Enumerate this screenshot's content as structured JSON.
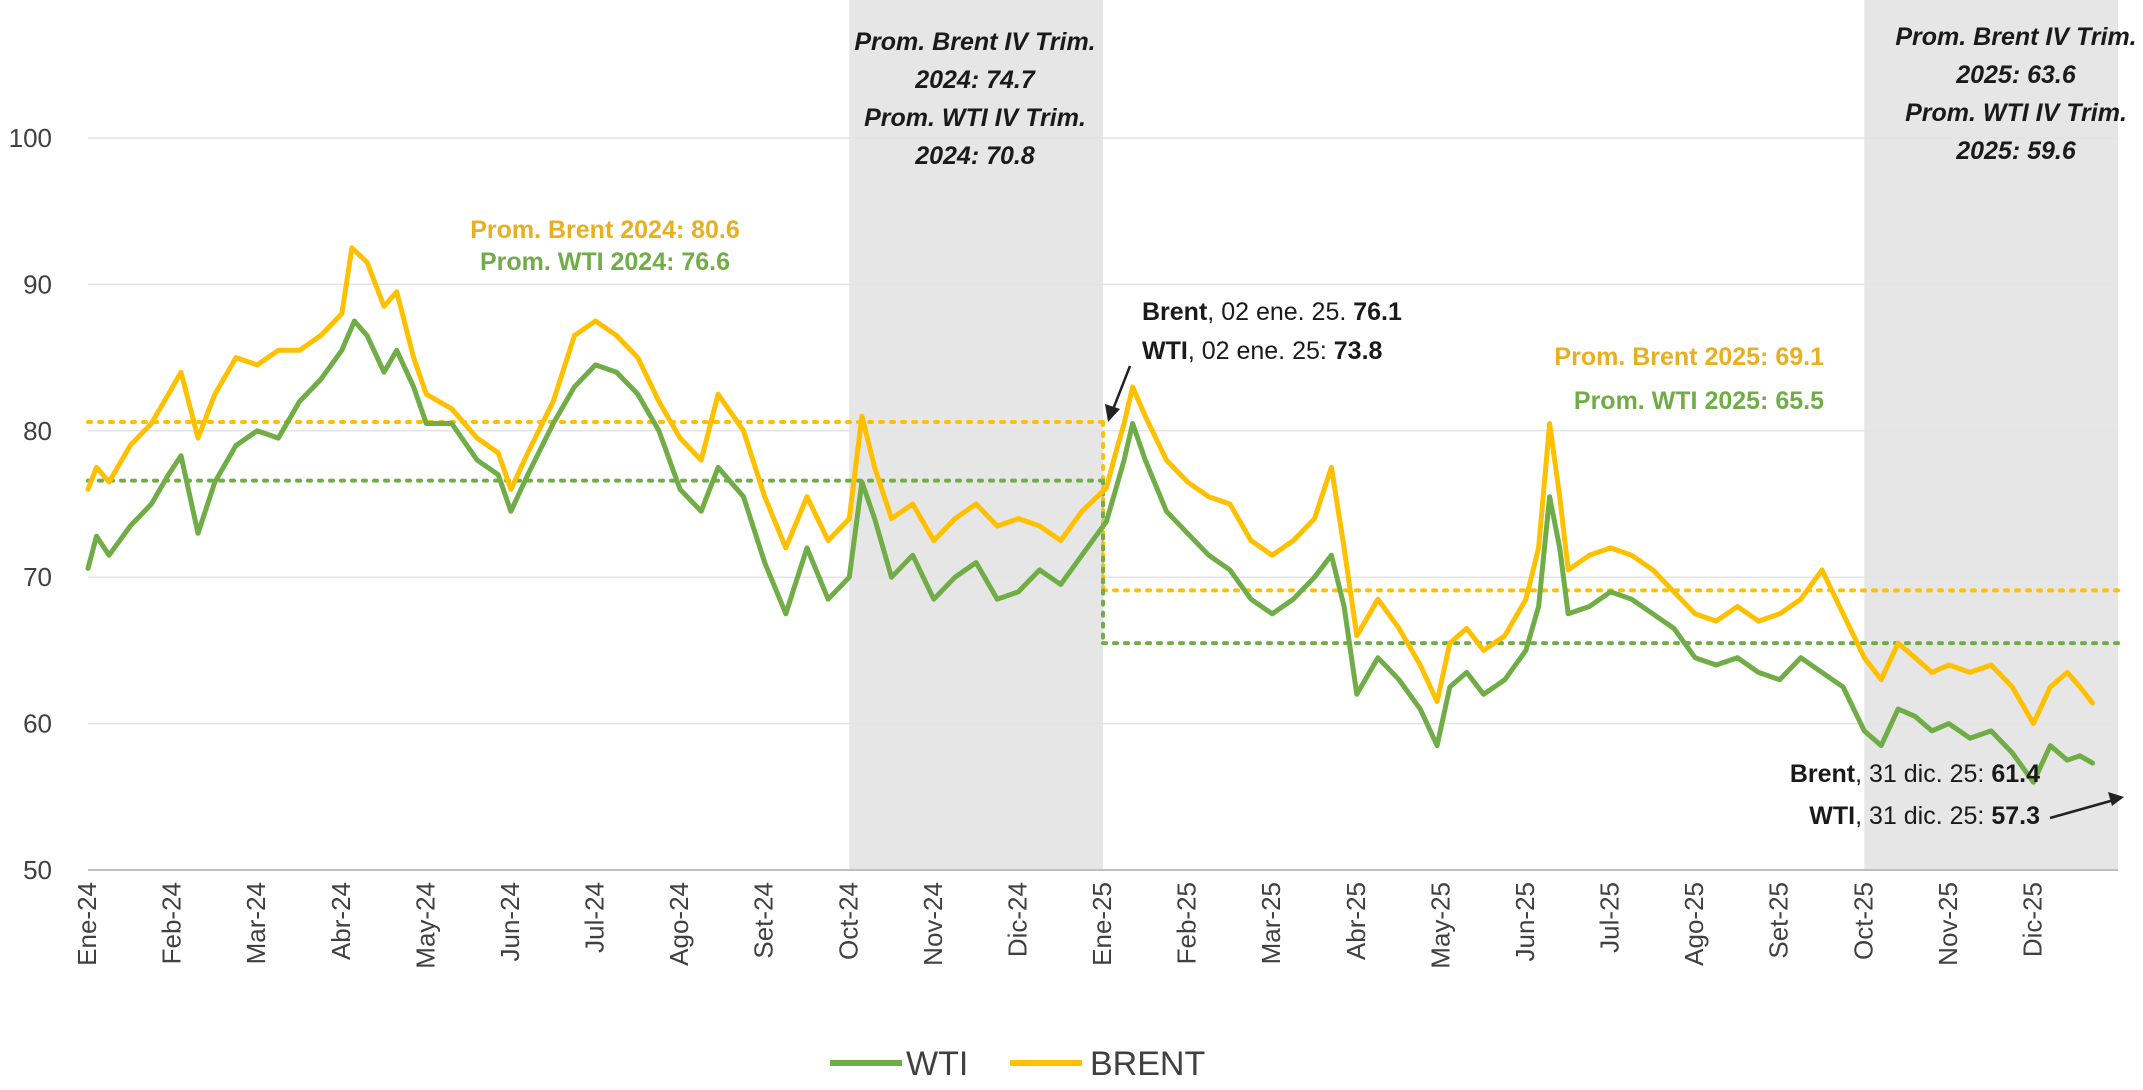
{
  "chart_data": {
    "type": "line",
    "ylim": [
      50,
      100
    ],
    "yticks": [
      50,
      60,
      70,
      80,
      90,
      100
    ],
    "grid": true,
    "legend_position": "bottom-center",
    "months": [
      "Ene-24",
      "Feb-24",
      "Mar-24",
      "Abr-24",
      "May-24",
      "Jun-24",
      "Jul-24",
      "Ago-24",
      "Set-24",
      "Oct-24",
      "Nov-24",
      "Dic-24",
      "Ene-25",
      "Feb-25",
      "Mar-25",
      "Abr-25",
      "May-25",
      "Jun-25",
      "Jul-25",
      "Ago-25",
      "Set-25",
      "Oct-25",
      "Nov-25",
      "Dic-25"
    ],
    "shaded_periods": [
      {
        "name": "IV Trim 2024",
        "from_month": 9,
        "to_month": 12
      },
      {
        "name": "IV Trim 2025",
        "from_month": 21,
        "to_month": 24
      }
    ],
    "colors": {
      "wti": "#70ad47",
      "brent": "#ffc000",
      "wti_text": "#70ad47",
      "brent_text": "#e8b020",
      "shade": "#e6e6e6"
    },
    "series": [
      {
        "name": "WTI",
        "key": "wti",
        "points": [
          [
            0,
            70.6
          ],
          [
            0.1,
            72.8
          ],
          [
            0.25,
            71.5
          ],
          [
            0.5,
            73.5
          ],
          [
            0.75,
            75.0
          ],
          [
            0.95,
            77.0
          ],
          [
            1.1,
            78.3
          ],
          [
            1.3,
            73.0
          ],
          [
            1.5,
            76.5
          ],
          [
            1.75,
            79.0
          ],
          [
            2.0,
            80.0
          ],
          [
            2.25,
            79.5
          ],
          [
            2.5,
            82.0
          ],
          [
            2.75,
            83.5
          ],
          [
            3.0,
            85.5
          ],
          [
            3.15,
            87.5
          ],
          [
            3.3,
            86.5
          ],
          [
            3.5,
            84.0
          ],
          [
            3.65,
            85.5
          ],
          [
            3.85,
            83.0
          ],
          [
            4.0,
            80.5
          ],
          [
            4.3,
            80.5
          ],
          [
            4.6,
            78.0
          ],
          [
            4.85,
            77.0
          ],
          [
            5.0,
            74.5
          ],
          [
            5.2,
            77.0
          ],
          [
            5.5,
            80.5
          ],
          [
            5.75,
            83.0
          ],
          [
            6.0,
            84.5
          ],
          [
            6.25,
            84.0
          ],
          [
            6.5,
            82.5
          ],
          [
            6.75,
            80.0
          ],
          [
            7.0,
            76.0
          ],
          [
            7.25,
            74.5
          ],
          [
            7.45,
            77.5
          ],
          [
            7.75,
            75.5
          ],
          [
            8.0,
            71.0
          ],
          [
            8.25,
            67.5
          ],
          [
            8.5,
            72.0
          ],
          [
            8.75,
            68.5
          ],
          [
            9.0,
            70.0
          ],
          [
            9.15,
            76.5
          ],
          [
            9.3,
            74.0
          ],
          [
            9.5,
            70.0
          ],
          [
            9.75,
            71.5
          ],
          [
            10.0,
            68.5
          ],
          [
            10.25,
            70.0
          ],
          [
            10.5,
            71.0
          ],
          [
            10.75,
            68.5
          ],
          [
            11.0,
            69.0
          ],
          [
            11.25,
            70.5
          ],
          [
            11.5,
            69.5
          ],
          [
            11.75,
            71.5
          ],
          [
            12.04,
            73.8
          ],
          [
            12.15,
            76.0
          ],
          [
            12.25,
            78.0
          ],
          [
            12.35,
            80.5
          ],
          [
            12.5,
            78.0
          ],
          [
            12.75,
            74.5
          ],
          [
            13.0,
            73.0
          ],
          [
            13.25,
            71.5
          ],
          [
            13.5,
            70.5
          ],
          [
            13.75,
            68.5
          ],
          [
            14.0,
            67.5
          ],
          [
            14.25,
            68.5
          ],
          [
            14.5,
            70.0
          ],
          [
            14.7,
            71.5
          ],
          [
            14.85,
            68.0
          ],
          [
            15.0,
            62.0
          ],
          [
            15.25,
            64.5
          ],
          [
            15.5,
            63.0
          ],
          [
            15.75,
            61.0
          ],
          [
            15.95,
            58.5
          ],
          [
            16.1,
            62.5
          ],
          [
            16.3,
            63.5
          ],
          [
            16.5,
            62.0
          ],
          [
            16.75,
            63.0
          ],
          [
            17.0,
            65.0
          ],
          [
            17.15,
            68.0
          ],
          [
            17.28,
            75.5
          ],
          [
            17.4,
            72.0
          ],
          [
            17.5,
            67.5
          ],
          [
            17.75,
            68.0
          ],
          [
            18.0,
            69.0
          ],
          [
            18.25,
            68.5
          ],
          [
            18.5,
            67.5
          ],
          [
            18.75,
            66.5
          ],
          [
            19.0,
            64.5
          ],
          [
            19.25,
            64.0
          ],
          [
            19.5,
            64.5
          ],
          [
            19.75,
            63.5
          ],
          [
            20.0,
            63.0
          ],
          [
            20.25,
            64.5
          ],
          [
            20.5,
            63.5
          ],
          [
            20.75,
            62.5
          ],
          [
            21.0,
            59.5
          ],
          [
            21.2,
            58.5
          ],
          [
            21.4,
            61.0
          ],
          [
            21.6,
            60.5
          ],
          [
            21.8,
            59.5
          ],
          [
            22.0,
            60.0
          ],
          [
            22.25,
            59.0
          ],
          [
            22.5,
            59.5
          ],
          [
            22.75,
            58.0
          ],
          [
            23.0,
            56.0
          ],
          [
            23.2,
            58.5
          ],
          [
            23.4,
            57.5
          ],
          [
            23.55,
            57.8
          ],
          [
            23.7,
            57.3
          ]
        ]
      },
      {
        "name": "BRENT",
        "key": "brent",
        "points": [
          [
            0,
            76.0
          ],
          [
            0.1,
            77.5
          ],
          [
            0.25,
            76.5
          ],
          [
            0.5,
            79.0
          ],
          [
            0.75,
            80.5
          ],
          [
            0.95,
            82.5
          ],
          [
            1.1,
            84.0
          ],
          [
            1.3,
            79.5
          ],
          [
            1.5,
            82.5
          ],
          [
            1.75,
            85.0
          ],
          [
            2.0,
            84.5
          ],
          [
            2.25,
            85.5
          ],
          [
            2.5,
            85.5
          ],
          [
            2.75,
            86.5
          ],
          [
            3.0,
            88.0
          ],
          [
            3.12,
            92.5
          ],
          [
            3.3,
            91.5
          ],
          [
            3.5,
            88.5
          ],
          [
            3.65,
            89.5
          ],
          [
            3.85,
            85.0
          ],
          [
            4.0,
            82.5
          ],
          [
            4.3,
            81.5
          ],
          [
            4.6,
            79.5
          ],
          [
            4.85,
            78.5
          ],
          [
            5.0,
            76.0
          ],
          [
            5.2,
            78.5
          ],
          [
            5.5,
            82.0
          ],
          [
            5.75,
            86.5
          ],
          [
            6.0,
            87.5
          ],
          [
            6.25,
            86.5
          ],
          [
            6.5,
            85.0
          ],
          [
            6.75,
            82.0
          ],
          [
            7.0,
            79.5
          ],
          [
            7.25,
            78.0
          ],
          [
            7.45,
            82.5
          ],
          [
            7.75,
            80.0
          ],
          [
            8.0,
            75.5
          ],
          [
            8.25,
            72.0
          ],
          [
            8.5,
            75.5
          ],
          [
            8.75,
            72.5
          ],
          [
            9.0,
            74.0
          ],
          [
            9.15,
            81.0
          ],
          [
            9.3,
            77.5
          ],
          [
            9.5,
            74.0
          ],
          [
            9.75,
            75.0
          ],
          [
            10.0,
            72.5
          ],
          [
            10.25,
            74.0
          ],
          [
            10.5,
            75.0
          ],
          [
            10.75,
            73.5
          ],
          [
            11.0,
            74.0
          ],
          [
            11.25,
            73.5
          ],
          [
            11.5,
            72.5
          ],
          [
            11.75,
            74.5
          ],
          [
            12.04,
            76.1
          ],
          [
            12.15,
            78.5
          ],
          [
            12.25,
            80.5
          ],
          [
            12.35,
            83.0
          ],
          [
            12.5,
            81.0
          ],
          [
            12.75,
            78.0
          ],
          [
            13.0,
            76.5
          ],
          [
            13.25,
            75.5
          ],
          [
            13.5,
            75.0
          ],
          [
            13.75,
            72.5
          ],
          [
            14.0,
            71.5
          ],
          [
            14.25,
            72.5
          ],
          [
            14.5,
            74.0
          ],
          [
            14.7,
            77.5
          ],
          [
            14.85,
            72.0
          ],
          [
            15.0,
            66.0
          ],
          [
            15.25,
            68.5
          ],
          [
            15.5,
            66.5
          ],
          [
            15.75,
            64.0
          ],
          [
            15.95,
            61.5
          ],
          [
            16.1,
            65.5
          ],
          [
            16.3,
            66.5
          ],
          [
            16.5,
            65.0
          ],
          [
            16.75,
            66.0
          ],
          [
            17.0,
            68.5
          ],
          [
            17.15,
            72.0
          ],
          [
            17.28,
            80.5
          ],
          [
            17.4,
            75.5
          ],
          [
            17.5,
            70.5
          ],
          [
            17.75,
            71.5
          ],
          [
            18.0,
            72.0
          ],
          [
            18.25,
            71.5
          ],
          [
            18.5,
            70.5
          ],
          [
            18.75,
            69.0
          ],
          [
            19.0,
            67.5
          ],
          [
            19.25,
            67.0
          ],
          [
            19.5,
            68.0
          ],
          [
            19.75,
            67.0
          ],
          [
            20.0,
            67.5
          ],
          [
            20.25,
            68.5
          ],
          [
            20.5,
            70.5
          ],
          [
            20.75,
            67.5
          ],
          [
            21.0,
            64.5
          ],
          [
            21.2,
            63.0
          ],
          [
            21.4,
            65.5
          ],
          [
            21.6,
            64.5
          ],
          [
            21.8,
            63.5
          ],
          [
            22.0,
            64.0
          ],
          [
            22.25,
            63.5
          ],
          [
            22.5,
            64.0
          ],
          [
            22.75,
            62.5
          ],
          [
            23.0,
            60.0
          ],
          [
            23.2,
            62.5
          ],
          [
            23.4,
            63.5
          ],
          [
            23.55,
            62.5
          ],
          [
            23.7,
            61.4
          ]
        ]
      }
    ],
    "averages": [
      {
        "key": "brent",
        "label": "Prom. Brent 2024",
        "value": 80.6,
        "from_month": 0,
        "to_month": 12
      },
      {
        "key": "wti",
        "label": "Prom. WTI 2024",
        "value": 76.6,
        "from_month": 0,
        "to_month": 12
      },
      {
        "key": "brent",
        "label": "Prom. Brent 2025",
        "value": 69.1,
        "from_month": 12,
        "to_month": 24
      },
      {
        "key": "wti",
        "label": "Prom. WTI 2025",
        "value": 65.5,
        "from_month": 12,
        "to_month": 24
      }
    ],
    "annotations": {
      "q4_2024": [
        "Prom. Brent IV Trim.",
        "2024: 74.7",
        "Prom. WTI IV Trim.",
        "2024: 70.8"
      ],
      "q4_2025": [
        "Prom. Brent IV Trim.",
        "2025: 63.6",
        "Prom. WTI IV Trim.",
        "2025: 59.6"
      ],
      "avg_2024": {
        "brent": "Prom. Brent 2024: 80.6",
        "wti": "Prom. WTI 2024: 76.6"
      },
      "avg_2025": {
        "brent": "Prom. Brent 2025: 69.1",
        "wti": "Prom. WTI 2025: 65.5"
      },
      "jan_2025": {
        "brent_name": "Brent",
        "brent_date": ", 02 ene. 25. ",
        "brent_value": "76.1",
        "wti_name": "WTI",
        "wti_date": ", 02 ene. 25: ",
        "wti_value": "73.8"
      },
      "dec_2025": {
        "brent_name": "Brent",
        "brent_date": ", 31 dic. 25: ",
        "brent_value": "61.4",
        "wti_name": "WTI",
        "wti_date": ", 31 dic. 25: ",
        "wti_value": "57.3"
      }
    },
    "legend": [
      {
        "key": "wti",
        "label": "WTI"
      },
      {
        "key": "brent",
        "label": "BRENT"
      }
    ]
  }
}
